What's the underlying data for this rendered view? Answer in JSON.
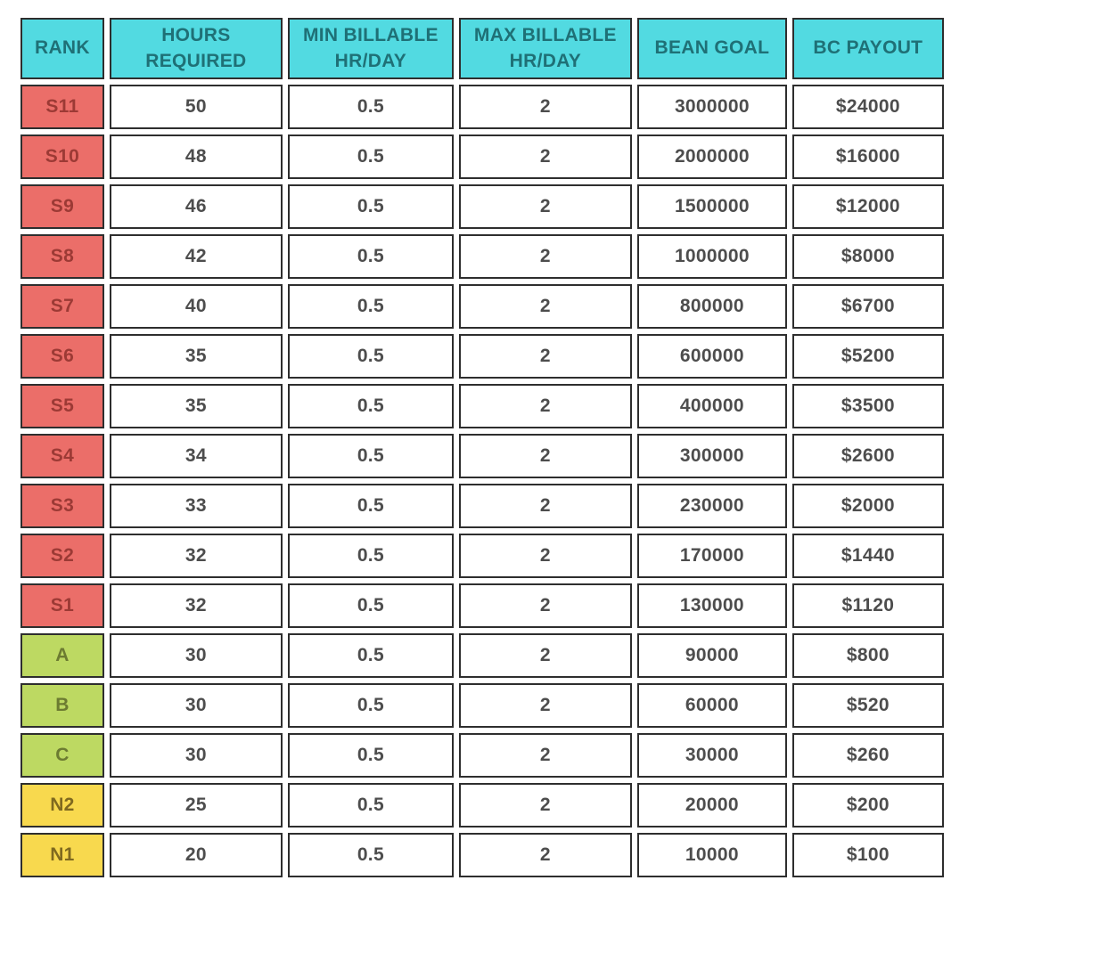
{
  "chart_data": {
    "type": "table",
    "columns": [
      "RANK",
      "HOURS REQUIRED",
      "MIN BILLABLE HR/DAY",
      "MAX BILLABLE HR/DAY",
      "BEAN GOAL",
      "BC PAYOUT"
    ],
    "rows": [
      {
        "rank": "S11",
        "tier": "s",
        "hours_required": "50",
        "min_billable": "0.5",
        "max_billable": "2",
        "bean_goal": "3000000",
        "bc_payout": "$24000"
      },
      {
        "rank": "S10",
        "tier": "s",
        "hours_required": "48",
        "min_billable": "0.5",
        "max_billable": "2",
        "bean_goal": "2000000",
        "bc_payout": "$16000"
      },
      {
        "rank": "S9",
        "tier": "s",
        "hours_required": "46",
        "min_billable": "0.5",
        "max_billable": "2",
        "bean_goal": "1500000",
        "bc_payout": "$12000"
      },
      {
        "rank": "S8",
        "tier": "s",
        "hours_required": "42",
        "min_billable": "0.5",
        "max_billable": "2",
        "bean_goal": "1000000",
        "bc_payout": "$8000"
      },
      {
        "rank": "S7",
        "tier": "s",
        "hours_required": "40",
        "min_billable": "0.5",
        "max_billable": "2",
        "bean_goal": "800000",
        "bc_payout": "$6700"
      },
      {
        "rank": "S6",
        "tier": "s",
        "hours_required": "35",
        "min_billable": "0.5",
        "max_billable": "2",
        "bean_goal": "600000",
        "bc_payout": "$5200"
      },
      {
        "rank": "S5",
        "tier": "s",
        "hours_required": "35",
        "min_billable": "0.5",
        "max_billable": "2",
        "bean_goal": "400000",
        "bc_payout": "$3500"
      },
      {
        "rank": "S4",
        "tier": "s",
        "hours_required": "34",
        "min_billable": "0.5",
        "max_billable": "2",
        "bean_goal": "300000",
        "bc_payout": "$2600"
      },
      {
        "rank": "S3",
        "tier": "s",
        "hours_required": "33",
        "min_billable": "0.5",
        "max_billable": "2",
        "bean_goal": "230000",
        "bc_payout": "$2000"
      },
      {
        "rank": "S2",
        "tier": "s",
        "hours_required": "32",
        "min_billable": "0.5",
        "max_billable": "2",
        "bean_goal": "170000",
        "bc_payout": "$1440"
      },
      {
        "rank": "S1",
        "tier": "s",
        "hours_required": "32",
        "min_billable": "0.5",
        "max_billable": "2",
        "bean_goal": "130000",
        "bc_payout": "$1120"
      },
      {
        "rank": "A",
        "tier": "abc",
        "hours_required": "30",
        "min_billable": "0.5",
        "max_billable": "2",
        "bean_goal": "90000",
        "bc_payout": "$800"
      },
      {
        "rank": "B",
        "tier": "abc",
        "hours_required": "30",
        "min_billable": "0.5",
        "max_billable": "2",
        "bean_goal": "60000",
        "bc_payout": "$520"
      },
      {
        "rank": "C",
        "tier": "abc",
        "hours_required": "30",
        "min_billable": "0.5",
        "max_billable": "2",
        "bean_goal": "30000",
        "bc_payout": "$260"
      },
      {
        "rank": "N2",
        "tier": "n",
        "hours_required": "25",
        "min_billable": "0.5",
        "max_billable": "2",
        "bean_goal": "20000",
        "bc_payout": "$200"
      },
      {
        "rank": "N1",
        "tier": "n",
        "hours_required": "20",
        "min_billable": "0.5",
        "max_billable": "2",
        "bean_goal": "10000",
        "bc_payout": "$100"
      }
    ]
  },
  "colors": {
    "header_bg": "#52dae1",
    "header_text": "#1f7076",
    "tier_s_bg": "#eb6e69",
    "tier_s_text": "#9c3a35",
    "tier_abc_bg": "#bdd962",
    "tier_abc_text": "#6c7b31",
    "tier_n_bg": "#f8d94e",
    "tier_n_text": "#7f691f",
    "value_text": "#4d4d4d",
    "border": "#2e2e2e"
  }
}
